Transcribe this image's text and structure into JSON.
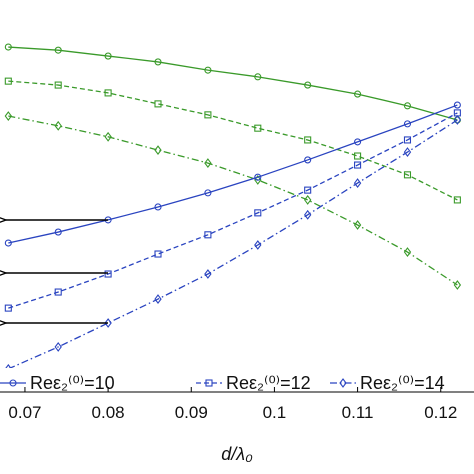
{
  "chart_data": {
    "type": "line",
    "x_label": "d/λ₀",
    "x": [
      0.068,
      0.074,
      0.08,
      0.086,
      0.092,
      0.098,
      0.104,
      0.11,
      0.116,
      0.122
    ],
    "xlim": [
      0.067,
      0.124
    ],
    "xticks": [
      0.07,
      0.08,
      0.09,
      0.1,
      0.11,
      0.12
    ],
    "ylim": [
      0,
      1
    ],
    "series": [
      {
        "color": "#3a9a2a",
        "style": "solid",
        "marker": "circle",
        "values": [
          0.88,
          0.872,
          0.857,
          0.842,
          0.821,
          0.804,
          0.783,
          0.76,
          0.73,
          0.694
        ]
      },
      {
        "color": "#3a9a2a",
        "style": "dashed",
        "marker": "square",
        "values": [
          0.793,
          0.783,
          0.763,
          0.735,
          0.707,
          0.673,
          0.643,
          0.602,
          0.554,
          0.49
        ]
      },
      {
        "color": "#3a9a2a",
        "style": "dashdot",
        "marker": "diamond",
        "values": [
          0.704,
          0.679,
          0.651,
          0.617,
          0.584,
          0.541,
          0.49,
          0.426,
          0.357,
          0.273
        ]
      },
      {
        "name": "Reε₂⁽⁰⁾=10",
        "color": "#2a44c0",
        "style": "solid",
        "marker": "circle",
        "values": [
          0.38,
          0.408,
          0.439,
          0.472,
          0.508,
          0.548,
          0.592,
          0.638,
          0.684,
          0.732
        ]
      },
      {
        "name": "Reε₂⁽⁰⁾=12",
        "color": "#2a44c0",
        "style": "dashed",
        "marker": "square",
        "values": [
          0.214,
          0.255,
          0.301,
          0.352,
          0.401,
          0.457,
          0.515,
          0.579,
          0.643,
          0.712
        ]
      },
      {
        "name": "Reε₂⁽⁰⁾=14",
        "color": "#2a44c0",
        "style": "dashdot",
        "marker": "diamond",
        "values": [
          0.059,
          0.115,
          0.176,
          0.237,
          0.301,
          0.375,
          0.452,
          0.533,
          0.612,
          0.694
        ]
      }
    ]
  }
}
